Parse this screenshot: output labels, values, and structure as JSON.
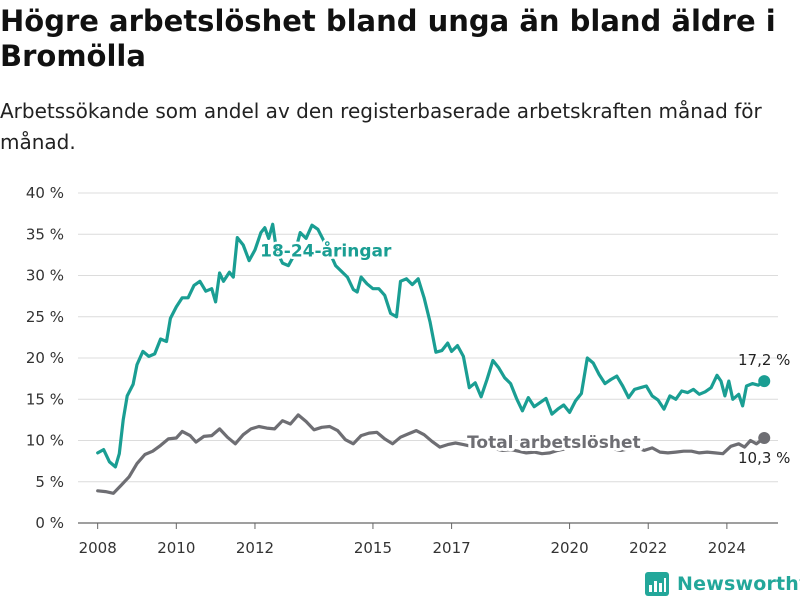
{
  "header": {
    "title": "Högre arbetslöshet bland unga än bland äldre i Bromölla",
    "subtitle": "Arbetssökande som andel av den registerbaserade arbetskraften månad för månad."
  },
  "colors": {
    "youth": "#1a9e93",
    "total": "#6e6e73",
    "grid": "#dcdcdc",
    "axis": "#666666"
  },
  "brand": {
    "name": "Newsworthy",
    "icon": "bar-chart-logo-icon",
    "color": "#23a79a"
  },
  "chart_data": {
    "type": "line",
    "title": "Högre arbetslöshet bland unga än bland äldre i Bromölla",
    "subtitle": "Arbetssökande som andel av den registerbaserade arbetskraften månad för månad.",
    "xlabel": "",
    "ylabel": "",
    "ylim": [
      0,
      40
    ],
    "xlim": [
      2007.5,
      2025.3
    ],
    "grid": true,
    "x_ticks": [
      2008,
      2010,
      2012,
      2015,
      2017,
      2020,
      2022,
      2024
    ],
    "x_tick_labels": [
      "2008",
      "2010",
      "2012",
      "2015",
      "2017",
      "2020",
      "2022",
      "2024"
    ],
    "y_ticks": [
      0,
      5,
      10,
      15,
      20,
      25,
      30,
      35,
      40
    ],
    "y_tick_labels": [
      "0 %",
      "5 %",
      "10 %",
      "15 %",
      "20 %",
      "25 %",
      "30 %",
      "35 %",
      "40 %"
    ],
    "series": [
      {
        "name": "18-24-åringar",
        "label": "18-24-åringar",
        "end_label": "17,2 %",
        "points": [
          [
            2008.0,
            8.5
          ],
          [
            2008.15,
            8.9
          ],
          [
            2008.3,
            7.4
          ],
          [
            2008.45,
            6.8
          ],
          [
            2008.55,
            8.4
          ],
          [
            2008.65,
            12.5
          ],
          [
            2008.75,
            15.4
          ],
          [
            2008.9,
            16.8
          ],
          [
            2009.0,
            19.2
          ],
          [
            2009.15,
            20.8
          ],
          [
            2009.3,
            20.2
          ],
          [
            2009.45,
            20.5
          ],
          [
            2009.6,
            22.3
          ],
          [
            2009.75,
            22.0
          ],
          [
            2009.85,
            24.8
          ],
          [
            2010.0,
            26.2
          ],
          [
            2010.15,
            27.3
          ],
          [
            2010.3,
            27.3
          ],
          [
            2010.45,
            28.8
          ],
          [
            2010.6,
            29.3
          ],
          [
            2010.75,
            28.1
          ],
          [
            2010.9,
            28.4
          ],
          [
            2011.0,
            26.8
          ],
          [
            2011.1,
            30.3
          ],
          [
            2011.2,
            29.3
          ],
          [
            2011.35,
            30.4
          ],
          [
            2011.45,
            29.8
          ],
          [
            2011.55,
            34.6
          ],
          [
            2011.7,
            33.7
          ],
          [
            2011.85,
            31.8
          ],
          [
            2012.0,
            33.1
          ],
          [
            2012.15,
            35.2
          ],
          [
            2012.25,
            35.8
          ],
          [
            2012.35,
            34.5
          ],
          [
            2012.45,
            36.2
          ],
          [
            2012.55,
            33.0
          ],
          [
            2012.7,
            31.5
          ],
          [
            2012.85,
            31.2
          ],
          [
            2013.0,
            32.5
          ],
          [
            2013.15,
            35.2
          ],
          [
            2013.3,
            34.5
          ],
          [
            2013.45,
            36.1
          ],
          [
            2013.6,
            35.6
          ],
          [
            2013.75,
            34.2
          ],
          [
            2013.9,
            32.8
          ],
          [
            2014.05,
            31.2
          ],
          [
            2014.2,
            30.5
          ],
          [
            2014.35,
            29.8
          ],
          [
            2014.5,
            28.3
          ],
          [
            2014.6,
            28.0
          ],
          [
            2014.7,
            29.8
          ],
          [
            2014.85,
            29.0
          ],
          [
            2015.0,
            28.4
          ],
          [
            2015.15,
            28.4
          ],
          [
            2015.3,
            27.6
          ],
          [
            2015.45,
            25.4
          ],
          [
            2015.6,
            25.0
          ],
          [
            2015.7,
            29.3
          ],
          [
            2015.85,
            29.6
          ],
          [
            2016.0,
            28.9
          ],
          [
            2016.15,
            29.6
          ],
          [
            2016.3,
            27.3
          ],
          [
            2016.45,
            24.4
          ],
          [
            2016.6,
            20.7
          ],
          [
            2016.75,
            20.9
          ],
          [
            2016.9,
            21.8
          ],
          [
            2017.0,
            20.8
          ],
          [
            2017.15,
            21.5
          ],
          [
            2017.3,
            20.2
          ],
          [
            2017.45,
            16.4
          ],
          [
            2017.6,
            17.0
          ],
          [
            2017.75,
            15.3
          ],
          [
            2017.9,
            17.4
          ],
          [
            2018.05,
            19.7
          ],
          [
            2018.2,
            18.8
          ],
          [
            2018.35,
            17.6
          ],
          [
            2018.5,
            16.9
          ],
          [
            2018.65,
            15.1
          ],
          [
            2018.8,
            13.6
          ],
          [
            2018.95,
            15.2
          ],
          [
            2019.1,
            14.1
          ],
          [
            2019.25,
            14.6
          ],
          [
            2019.4,
            15.1
          ],
          [
            2019.55,
            13.2
          ],
          [
            2019.7,
            13.8
          ],
          [
            2019.85,
            14.3
          ],
          [
            2020.0,
            13.4
          ],
          [
            2020.15,
            14.8
          ],
          [
            2020.3,
            15.7
          ],
          [
            2020.45,
            20.0
          ],
          [
            2020.6,
            19.4
          ],
          [
            2020.75,
            18.0
          ],
          [
            2020.9,
            16.9
          ],
          [
            2021.05,
            17.4
          ],
          [
            2021.2,
            17.8
          ],
          [
            2021.35,
            16.6
          ],
          [
            2021.5,
            15.2
          ],
          [
            2021.65,
            16.2
          ],
          [
            2021.8,
            16.4
          ],
          [
            2021.95,
            16.6
          ],
          [
            2022.1,
            15.4
          ],
          [
            2022.25,
            14.9
          ],
          [
            2022.4,
            13.8
          ],
          [
            2022.55,
            15.4
          ],
          [
            2022.7,
            15.0
          ],
          [
            2022.85,
            16.0
          ],
          [
            2023.0,
            15.8
          ],
          [
            2023.15,
            16.2
          ],
          [
            2023.3,
            15.6
          ],
          [
            2023.45,
            15.9
          ],
          [
            2023.6,
            16.4
          ],
          [
            2023.75,
            17.9
          ],
          [
            2023.85,
            17.2
          ],
          [
            2023.95,
            15.4
          ],
          [
            2024.05,
            17.2
          ],
          [
            2024.15,
            15.0
          ],
          [
            2024.3,
            15.6
          ],
          [
            2024.4,
            14.2
          ],
          [
            2024.5,
            16.6
          ],
          [
            2024.65,
            16.9
          ],
          [
            2024.8,
            16.7
          ],
          [
            2024.95,
            17.2
          ]
        ]
      },
      {
        "name": "Total arbetslöshet",
        "label": "Total arbetslöshet",
        "end_label": "10,3 %",
        "points": [
          [
            2008.0,
            3.9
          ],
          [
            2008.2,
            3.8
          ],
          [
            2008.4,
            3.6
          ],
          [
            2008.6,
            4.6
          ],
          [
            2008.8,
            5.6
          ],
          [
            2009.0,
            7.2
          ],
          [
            2009.2,
            8.3
          ],
          [
            2009.4,
            8.7
          ],
          [
            2009.6,
            9.4
          ],
          [
            2009.8,
            10.2
          ],
          [
            2010.0,
            10.3
          ],
          [
            2010.15,
            11.1
          ],
          [
            2010.35,
            10.6
          ],
          [
            2010.5,
            9.8
          ],
          [
            2010.7,
            10.5
          ],
          [
            2010.9,
            10.6
          ],
          [
            2011.1,
            11.4
          ],
          [
            2011.3,
            10.4
          ],
          [
            2011.5,
            9.6
          ],
          [
            2011.7,
            10.7
          ],
          [
            2011.9,
            11.4
          ],
          [
            2012.1,
            11.7
          ],
          [
            2012.3,
            11.5
          ],
          [
            2012.5,
            11.4
          ],
          [
            2012.7,
            12.4
          ],
          [
            2012.9,
            12.0
          ],
          [
            2013.1,
            13.1
          ],
          [
            2013.3,
            12.3
          ],
          [
            2013.5,
            11.3
          ],
          [
            2013.7,
            11.6
          ],
          [
            2013.9,
            11.7
          ],
          [
            2014.1,
            11.2
          ],
          [
            2014.3,
            10.1
          ],
          [
            2014.5,
            9.6
          ],
          [
            2014.7,
            10.6
          ],
          [
            2014.9,
            10.9
          ],
          [
            2015.1,
            11.0
          ],
          [
            2015.3,
            10.2
          ],
          [
            2015.5,
            9.6
          ],
          [
            2015.7,
            10.4
          ],
          [
            2015.9,
            10.8
          ],
          [
            2016.1,
            11.2
          ],
          [
            2016.3,
            10.7
          ],
          [
            2016.5,
            9.9
          ],
          [
            2016.7,
            9.2
          ],
          [
            2016.9,
            9.5
          ],
          [
            2017.1,
            9.7
          ],
          [
            2017.3,
            9.5
          ],
          [
            2017.5,
            9.3
          ],
          [
            2017.7,
            9.4
          ],
          [
            2017.9,
            9.2
          ],
          [
            2018.1,
            9.0
          ],
          [
            2018.3,
            8.8
          ],
          [
            2018.5,
            8.9
          ],
          [
            2018.7,
            8.7
          ],
          [
            2018.9,
            8.5
          ],
          [
            2019.1,
            8.6
          ],
          [
            2019.3,
            8.4
          ],
          [
            2019.5,
            8.5
          ],
          [
            2019.7,
            8.8
          ],
          [
            2019.9,
            9.0
          ],
          [
            2020.1,
            9.3
          ],
          [
            2020.3,
            9.8
          ],
          [
            2020.5,
            10.0
          ],
          [
            2020.7,
            9.6
          ],
          [
            2020.9,
            9.3
          ],
          [
            2021.1,
            9.0
          ],
          [
            2021.3,
            8.8
          ],
          [
            2021.5,
            9.0
          ],
          [
            2021.7,
            9.1
          ],
          [
            2021.9,
            8.8
          ],
          [
            2022.1,
            9.1
          ],
          [
            2022.3,
            8.6
          ],
          [
            2022.5,
            8.5
          ],
          [
            2022.7,
            8.6
          ],
          [
            2022.9,
            8.7
          ],
          [
            2023.1,
            8.7
          ],
          [
            2023.3,
            8.5
          ],
          [
            2023.5,
            8.6
          ],
          [
            2023.7,
            8.5
          ],
          [
            2023.9,
            8.4
          ],
          [
            2024.1,
            9.3
          ],
          [
            2024.3,
            9.6
          ],
          [
            2024.45,
            9.2
          ],
          [
            2024.6,
            10.0
          ],
          [
            2024.75,
            9.6
          ],
          [
            2024.95,
            10.3
          ]
        ]
      }
    ]
  }
}
